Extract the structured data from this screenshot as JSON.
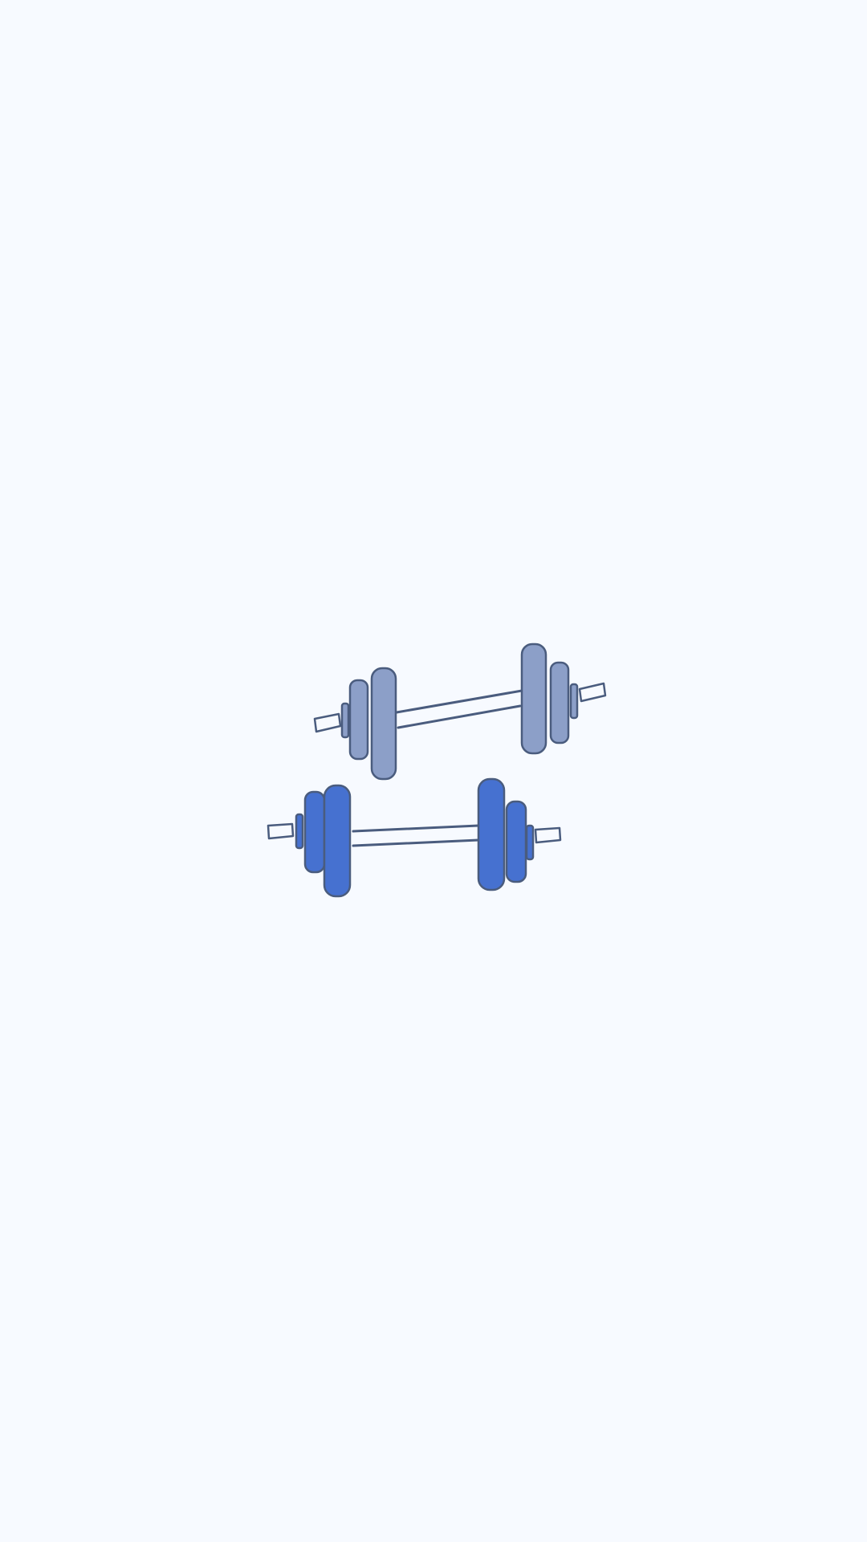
{
  "screen": {
    "type": "splash",
    "background_color": "#f7faff"
  },
  "illustration": {
    "icon": "barbell-pair-icon",
    "items": [
      {
        "name": "barbell-back",
        "icon": "barbell-icon",
        "plate_color": "#8c9fc8"
      },
      {
        "name": "barbell-front",
        "icon": "barbell-icon",
        "plate_color": "#4671d0"
      }
    ],
    "outline_color": "#4a5c7e"
  }
}
